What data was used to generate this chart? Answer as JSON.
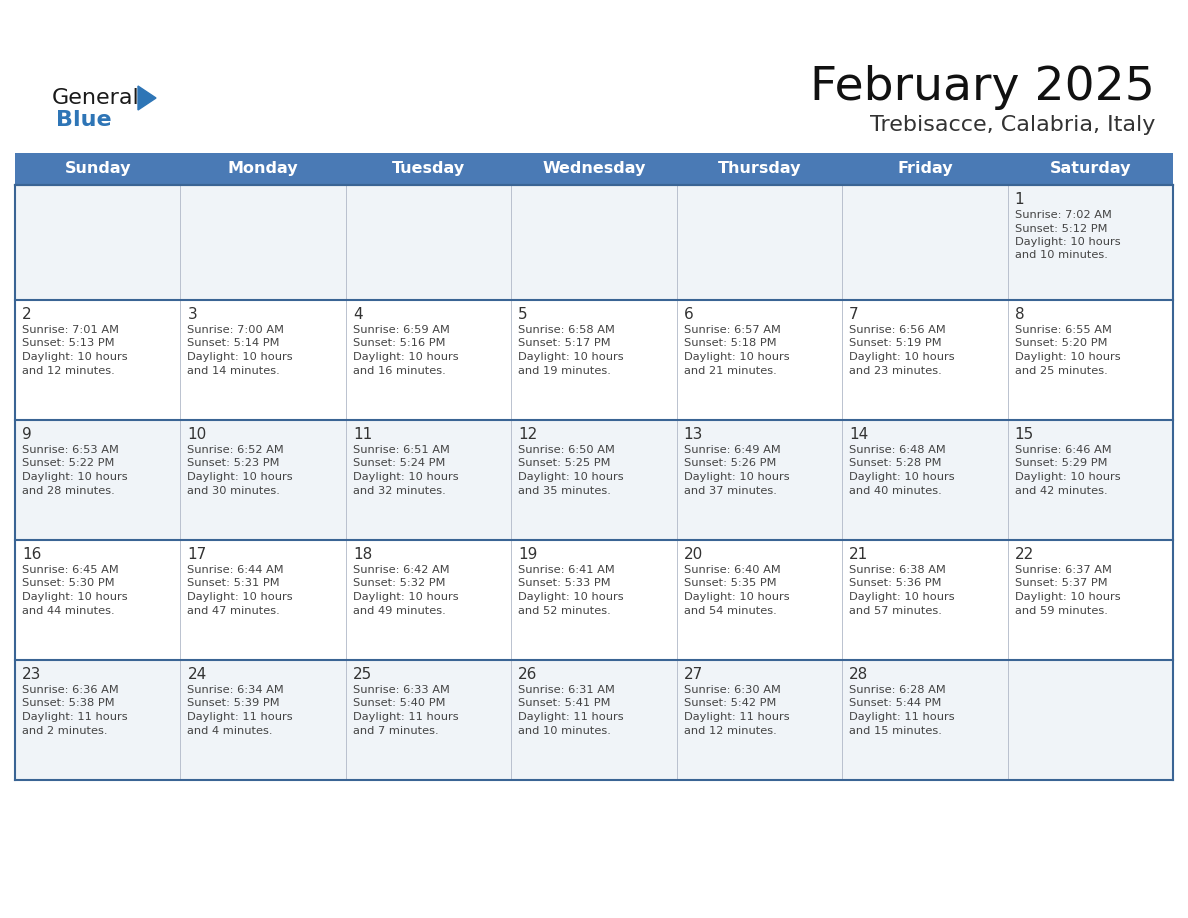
{
  "title": "February 2025",
  "subtitle": "Trebisacce, Calabria, Italy",
  "days_of_week": [
    "Sunday",
    "Monday",
    "Tuesday",
    "Wednesday",
    "Thursday",
    "Friday",
    "Saturday"
  ],
  "header_bg": "#4a7ab5",
  "header_text": "#ffffff",
  "row_bg_odd": "#f0f4f8",
  "row_bg_even": "#ffffff",
  "border_color": "#3a6494",
  "cell_border_color": "#b0b8c8",
  "text_color": "#444444",
  "day_num_color": "#333333",
  "logo_general_color": "#1a1a1a",
  "logo_blue_color": "#2e75b6",
  "title_color": "#111111",
  "subtitle_color": "#333333",
  "weeks": [
    [
      {
        "day": "",
        "sunrise": "",
        "sunset": "",
        "daylight": ""
      },
      {
        "day": "",
        "sunrise": "",
        "sunset": "",
        "daylight": ""
      },
      {
        "day": "",
        "sunrise": "",
        "sunset": "",
        "daylight": ""
      },
      {
        "day": "",
        "sunrise": "",
        "sunset": "",
        "daylight": ""
      },
      {
        "day": "",
        "sunrise": "",
        "sunset": "",
        "daylight": ""
      },
      {
        "day": "",
        "sunrise": "",
        "sunset": "",
        "daylight": ""
      },
      {
        "day": "1",
        "sunrise": "7:02 AM",
        "sunset": "5:12 PM",
        "daylight": "10 hours and 10 minutes."
      }
    ],
    [
      {
        "day": "2",
        "sunrise": "7:01 AM",
        "sunset": "5:13 PM",
        "daylight": "10 hours and 12 minutes."
      },
      {
        "day": "3",
        "sunrise": "7:00 AM",
        "sunset": "5:14 PM",
        "daylight": "10 hours and 14 minutes."
      },
      {
        "day": "4",
        "sunrise": "6:59 AM",
        "sunset": "5:16 PM",
        "daylight": "10 hours and 16 minutes."
      },
      {
        "day": "5",
        "sunrise": "6:58 AM",
        "sunset": "5:17 PM",
        "daylight": "10 hours and 19 minutes."
      },
      {
        "day": "6",
        "sunrise": "6:57 AM",
        "sunset": "5:18 PM",
        "daylight": "10 hours and 21 minutes."
      },
      {
        "day": "7",
        "sunrise": "6:56 AM",
        "sunset": "5:19 PM",
        "daylight": "10 hours and 23 minutes."
      },
      {
        "day": "8",
        "sunrise": "6:55 AM",
        "sunset": "5:20 PM",
        "daylight": "10 hours and 25 minutes."
      }
    ],
    [
      {
        "day": "9",
        "sunrise": "6:53 AM",
        "sunset": "5:22 PM",
        "daylight": "10 hours and 28 minutes."
      },
      {
        "day": "10",
        "sunrise": "6:52 AM",
        "sunset": "5:23 PM",
        "daylight": "10 hours and 30 minutes."
      },
      {
        "day": "11",
        "sunrise": "6:51 AM",
        "sunset": "5:24 PM",
        "daylight": "10 hours and 32 minutes."
      },
      {
        "day": "12",
        "sunrise": "6:50 AM",
        "sunset": "5:25 PM",
        "daylight": "10 hours and 35 minutes."
      },
      {
        "day": "13",
        "sunrise": "6:49 AM",
        "sunset": "5:26 PM",
        "daylight": "10 hours and 37 minutes."
      },
      {
        "day": "14",
        "sunrise": "6:48 AM",
        "sunset": "5:28 PM",
        "daylight": "10 hours and 40 minutes."
      },
      {
        "day": "15",
        "sunrise": "6:46 AM",
        "sunset": "5:29 PM",
        "daylight": "10 hours and 42 minutes."
      }
    ],
    [
      {
        "day": "16",
        "sunrise": "6:45 AM",
        "sunset": "5:30 PM",
        "daylight": "10 hours and 44 minutes."
      },
      {
        "day": "17",
        "sunrise": "6:44 AM",
        "sunset": "5:31 PM",
        "daylight": "10 hours and 47 minutes."
      },
      {
        "day": "18",
        "sunrise": "6:42 AM",
        "sunset": "5:32 PM",
        "daylight": "10 hours and 49 minutes."
      },
      {
        "day": "19",
        "sunrise": "6:41 AM",
        "sunset": "5:33 PM",
        "daylight": "10 hours and 52 minutes."
      },
      {
        "day": "20",
        "sunrise": "6:40 AM",
        "sunset": "5:35 PM",
        "daylight": "10 hours and 54 minutes."
      },
      {
        "day": "21",
        "sunrise": "6:38 AM",
        "sunset": "5:36 PM",
        "daylight": "10 hours and 57 minutes."
      },
      {
        "day": "22",
        "sunrise": "6:37 AM",
        "sunset": "5:37 PM",
        "daylight": "10 hours and 59 minutes."
      }
    ],
    [
      {
        "day": "23",
        "sunrise": "6:36 AM",
        "sunset": "5:38 PM",
        "daylight": "11 hours and 2 minutes."
      },
      {
        "day": "24",
        "sunrise": "6:34 AM",
        "sunset": "5:39 PM",
        "daylight": "11 hours and 4 minutes."
      },
      {
        "day": "25",
        "sunrise": "6:33 AM",
        "sunset": "5:40 PM",
        "daylight": "11 hours and 7 minutes."
      },
      {
        "day": "26",
        "sunrise": "6:31 AM",
        "sunset": "5:41 PM",
        "daylight": "11 hours and 10 minutes."
      },
      {
        "day": "27",
        "sunrise": "6:30 AM",
        "sunset": "5:42 PM",
        "daylight": "11 hours and 12 minutes."
      },
      {
        "day": "28",
        "sunrise": "6:28 AM",
        "sunset": "5:44 PM",
        "daylight": "11 hours and 15 minutes."
      },
      {
        "day": "",
        "sunrise": "",
        "sunset": "",
        "daylight": ""
      }
    ]
  ]
}
